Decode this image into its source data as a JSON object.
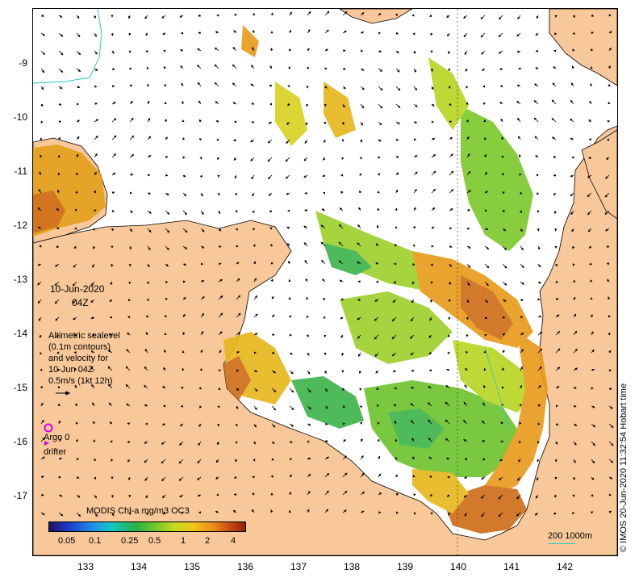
{
  "date": "10-Jun-2020",
  "hour": "04Z",
  "legend_lines": [
    "Altimetric sealevel",
    "(0.1m contours)",
    "and velocity for",
    "10-Jun 04Z",
    "0.5m/s (1kt 12h)"
  ],
  "argo_label": "Argo 0",
  "drifter_label": "drifter",
  "colorbar": {
    "title": "MODIS Chl-a mg/m3 OC3",
    "labels": [
      "0.05",
      "0.1",
      "0.25",
      "0.5",
      "1",
      "2",
      "4"
    ]
  },
  "scale_label": "200  1000m",
  "credit": "© IMOS 20-Jun-2020 11:32:54 Hobart time",
  "axes": {
    "y_ticks": [
      "-9",
      "-10",
      "-11",
      "-12",
      "-13",
      "-14",
      "-15",
      "-16",
      "-17"
    ],
    "x_ticks": [
      "133",
      "134",
      "135",
      "136",
      "137",
      "138",
      "139",
      "140",
      "141",
      "142"
    ]
  },
  "colors": {
    "land": "#f8c89a",
    "ocean": "#ffffff",
    "argo": "#e000e0",
    "contour": "#27c9c9"
  }
}
